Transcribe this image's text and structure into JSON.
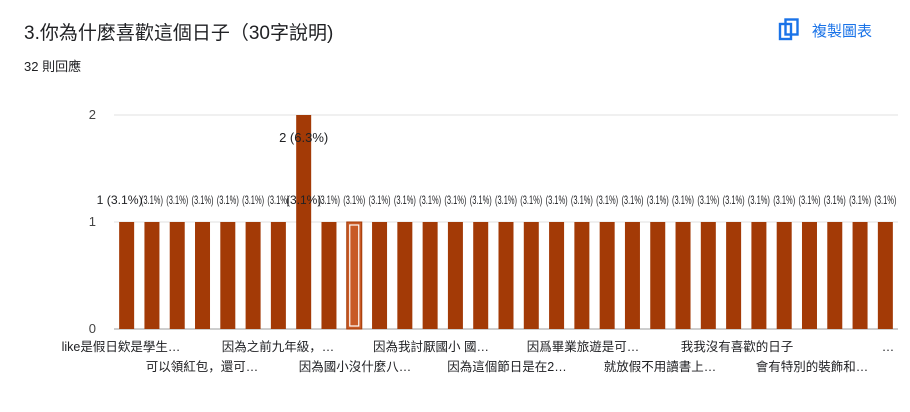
{
  "header": {
    "title": "3.你為什麼喜歡這個日子（30字說明)",
    "response_count": "32 則回應",
    "copy_chart_label": "複製圖表",
    "copy_icon": "copy-icon"
  },
  "colors": {
    "bar": "#a33a06",
    "bar_highlight_fill": "#c85a26",
    "accent": "#1a73e8",
    "grid": "#e0e0e0"
  },
  "chart_data": {
    "type": "bar",
    "title": "",
    "xlabel": "",
    "ylabel": "",
    "ylim": [
      0,
      2
    ],
    "yticks": [
      "0",
      "1",
      "2"
    ],
    "grid": true,
    "bar_count": 31,
    "values": [
      1,
      1,
      1,
      1,
      1,
      1,
      1,
      2,
      1,
      1,
      1,
      1,
      1,
      1,
      1,
      1,
      1,
      1,
      1,
      1,
      1,
      1,
      1,
      1,
      1,
      1,
      1,
      1,
      1,
      1,
      1
    ],
    "data_labels": [
      "1 (3.1%)",
      "(3.1%)",
      "(3.1%)",
      "(3.1%)",
      "(3.1%)",
      "(3.1%)",
      "(3.1%)",
      "2 (6.3%)",
      "(3.1%)",
      "(3.1%)",
      "(3.1%)",
      "(3.1%)",
      "(3.1%)",
      "(3.1%)",
      "(3.1%)",
      "(3.1%)",
      "(3.1%)",
      "(3.1%)",
      "(3.1%)",
      "(3.1%)",
      "(3.1%)",
      "(3.1%)",
      "(3.1%)",
      "(3.1%)",
      "(3.1%)",
      "(3.1%)",
      "(3.1%)",
      "(3.1%)",
      "(3.1%)",
      "(3.1%)",
      "(3.1%)"
    ],
    "highlight_index": 9,
    "categories_row1": [
      "like是假日欸是學生…",
      "因為之前九年級，…",
      "因為我討厭國小 國…",
      "因爲畢業旅遊是可…",
      "我我沒有喜歡的日子",
      "…"
    ],
    "categories_row2": [
      "可以領紅包，還可…",
      "因為國小沒什麼八…",
      "因為這個節日是在2…",
      "就放假不用讀書上…",
      "會有特別的裝飾和…"
    ]
  }
}
